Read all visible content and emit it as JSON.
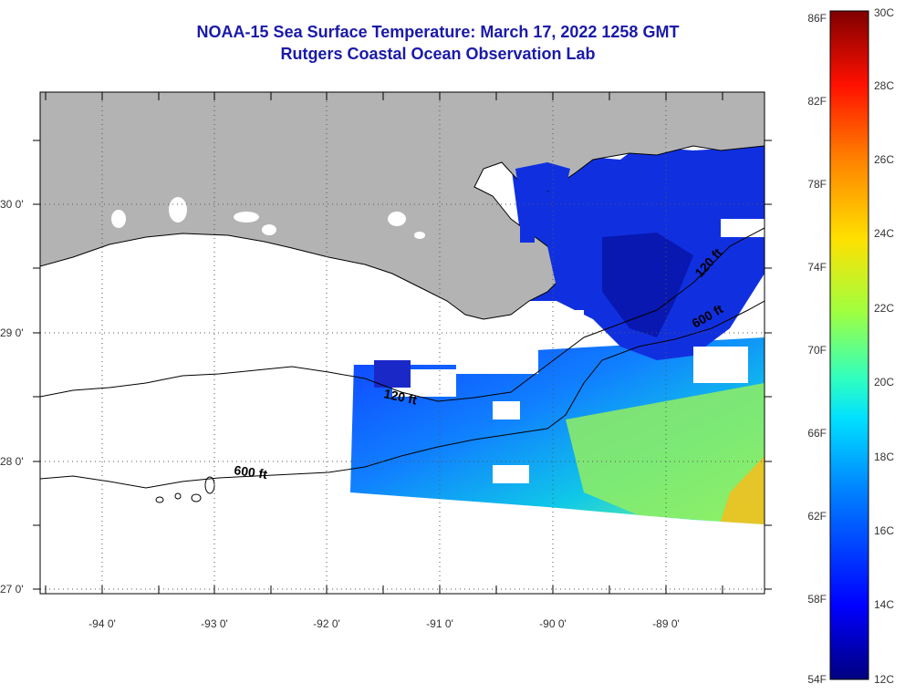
{
  "title_line1": "NOAA-15 Sea Surface Temperature:  March 17, 2022 1258 GMT",
  "title_line2": "Rutgers Coastal Ocean Observation Lab",
  "map": {
    "longitude_labels": [
      "-94 0'",
      "-93 0'",
      "-92 0'",
      "-91 0'",
      "-90 0'",
      "-89 0'"
    ],
    "latitude_labels": [
      "30 0'",
      "29 0'",
      "28 0'",
      "27 0'"
    ],
    "contour_labels": [
      "120 ft",
      "600 ft",
      "120 ft",
      "600 ft"
    ],
    "land_color": "#b3b3b3",
    "no_data_color": "#ffffff"
  },
  "colorbar": {
    "fahrenheit_labels": [
      "86F",
      "82F",
      "78F",
      "74F",
      "70F",
      "66F",
      "62F",
      "58F",
      "54F"
    ],
    "celsius_labels": [
      "30C",
      "28C",
      "26C",
      "24C",
      "22C",
      "20C",
      "18C",
      "16C",
      "14C",
      "12C"
    ],
    "range_celsius": [
      12,
      30
    ],
    "colors": [
      "#00007f",
      "#0000ff",
      "#0080ff",
      "#00e0ff",
      "#30ffc0",
      "#a0ff40",
      "#ffe000",
      "#ff8000",
      "#ff1000",
      "#7f0000"
    ]
  }
}
